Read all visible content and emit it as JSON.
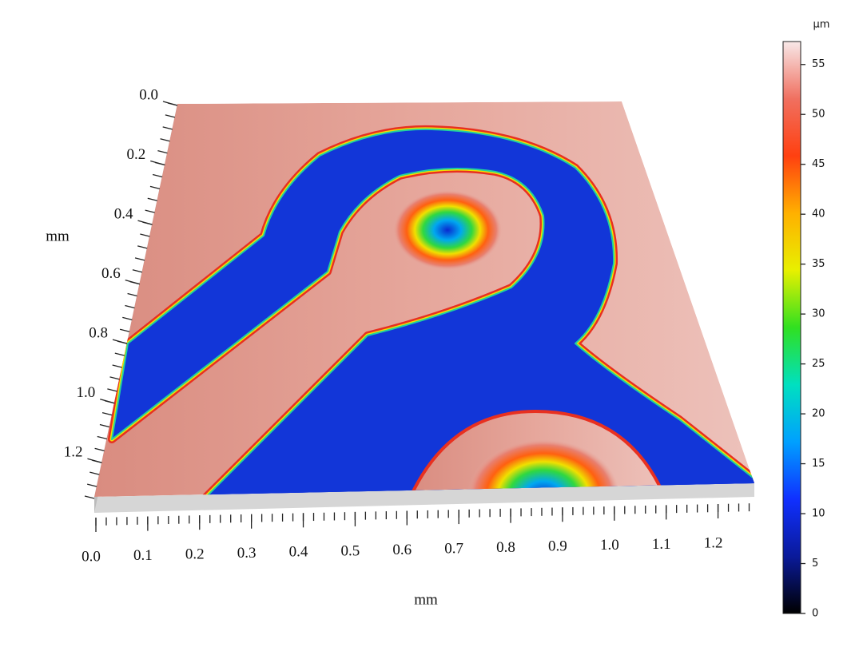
{
  "chart_data": {
    "type": "surface3d",
    "xlabel": "mm",
    "ylabel": "mm",
    "xlim": [
      0,
      1.27
    ],
    "ylim": [
      0,
      1.32
    ],
    "xticks": [
      {
        "value": 0,
        "label": "0.0"
      },
      {
        "value": 0.1,
        "label": "0.1"
      },
      {
        "value": 0.2,
        "label": "0.2"
      },
      {
        "value": 0.3,
        "label": "0.3"
      },
      {
        "value": 0.4,
        "label": "0.4"
      },
      {
        "value": 0.5,
        "label": "0.5"
      },
      {
        "value": 0.6,
        "label": "0.6"
      },
      {
        "value": 0.7,
        "label": "0.7"
      },
      {
        "value": 0.8,
        "label": "0.8"
      },
      {
        "value": 0.9,
        "label": "0.9"
      },
      {
        "value": 1.0,
        "label": "1.0"
      },
      {
        "value": 1.1,
        "label": "1.1"
      },
      {
        "value": 1.2,
        "label": "1.2"
      }
    ],
    "yticks": [
      {
        "value": 0,
        "label": "0.0"
      },
      {
        "value": 0.2,
        "label": "0.2"
      },
      {
        "value": 0.4,
        "label": "0.4"
      },
      {
        "value": 0.6,
        "label": "0.6"
      },
      {
        "value": 0.8,
        "label": "0.8"
      },
      {
        "value": 1.0,
        "label": "1.0"
      },
      {
        "value": 1.2,
        "label": "1.2"
      }
    ],
    "colorbar": {
      "label": "µm",
      "lim": [
        0,
        57.3
      ],
      "ticks": [
        0,
        5,
        10,
        15,
        20,
        25,
        30,
        35,
        40,
        45,
        50,
        55
      ],
      "colormap": [
        "#000000",
        "#0a1a9a",
        "#1030ff",
        "#00a0ff",
        "#00e0c0",
        "#30e020",
        "#e8f000",
        "#ffb000",
        "#ff4010",
        "#f07060",
        "#f8e8e8"
      ]
    }
  }
}
